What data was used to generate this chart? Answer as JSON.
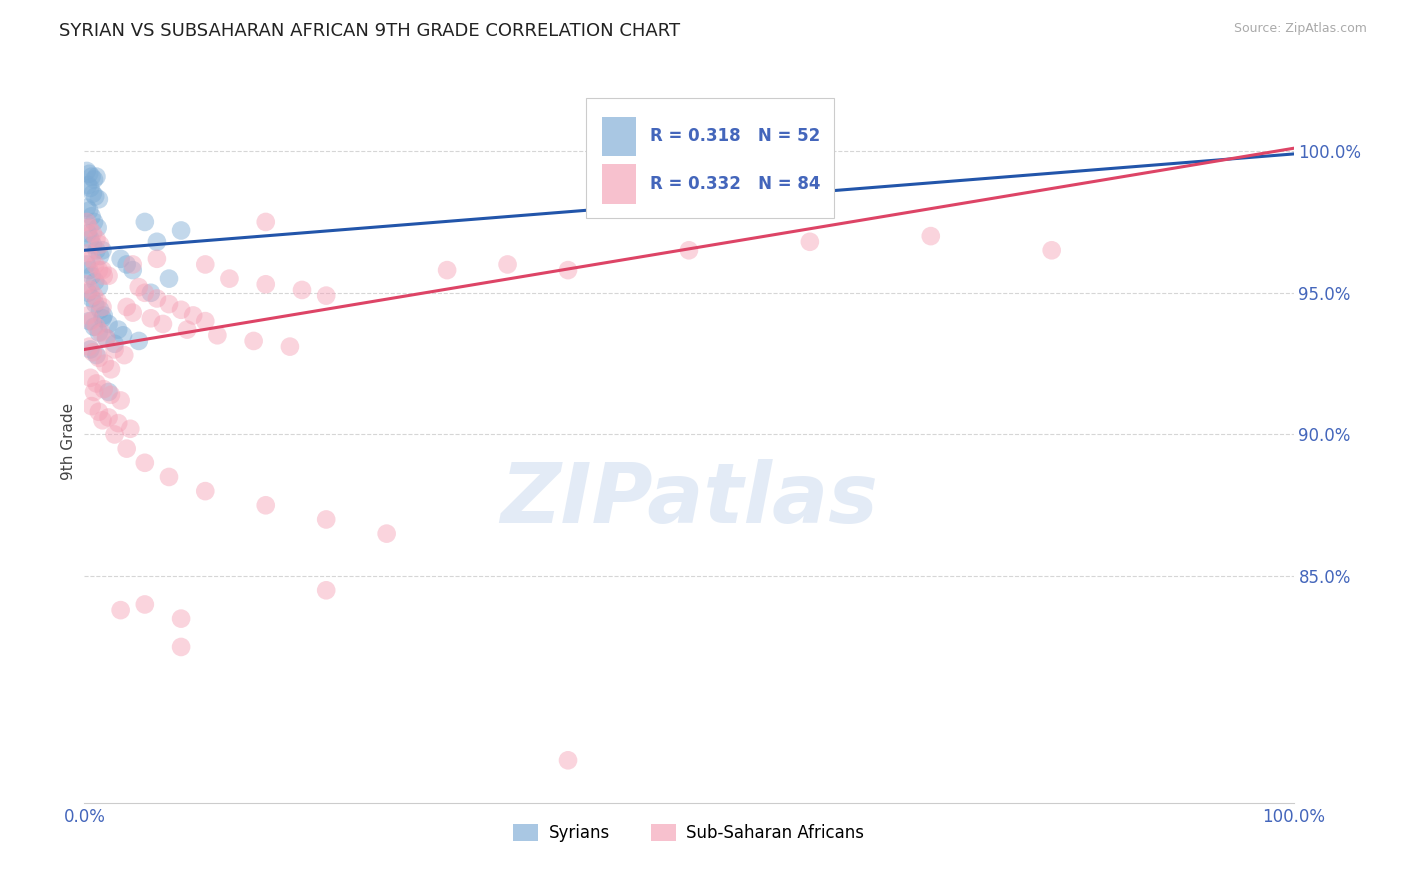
{
  "title": "SYRIAN VS SUBSAHARAN AFRICAN 9TH GRADE CORRELATION CHART",
  "source": "Source: ZipAtlas.com",
  "ylabel": "9th Grade",
  "yticks": [
    100.0,
    95.0,
    90.0,
    85.0
  ],
  "ytick_labels": [
    "100.0%",
    "95.0%",
    "90.0%",
    "85.0%"
  ],
  "xtick_vals": [
    0.0,
    100.0
  ],
  "xtick_labels": [
    "0.0%",
    "100.0%"
  ],
  "xlim": [
    0.0,
    100.0
  ],
  "ylim": [
    77.0,
    102.5
  ],
  "legend_bottom": [
    "Syrians",
    "Sub-Saharan Africans"
  ],
  "R_syrian": 0.318,
  "N_syrian": 52,
  "R_subsaharan": 0.332,
  "N_subsaharan": 84,
  "syrian_color": "#7BAAD4",
  "subsaharan_color": "#F4A0B5",
  "syrian_line_color": "#2255AA",
  "subsaharan_line_color": "#DD4466",
  "background_color": "#FFFFFF",
  "grid_color": "#CCCCCC",
  "title_color": "#222222",
  "source_color": "#AAAAAA",
  "axis_tick_color": "#4466BB",
  "ylabel_color": "#444444",
  "syrian_line_start_y": 96.5,
  "syrian_line_end_y": 99.9,
  "subsaharan_line_start_y": 93.0,
  "subsaharan_line_end_y": 100.1,
  "syrian_points": [
    [
      0.2,
      99.3
    ],
    [
      0.4,
      99.2
    ],
    [
      0.6,
      99.1
    ],
    [
      0.8,
      99.0
    ],
    [
      1.0,
      99.1
    ],
    [
      0.3,
      98.8
    ],
    [
      0.5,
      98.7
    ],
    [
      0.7,
      98.5
    ],
    [
      0.9,
      98.4
    ],
    [
      1.2,
      98.3
    ],
    [
      0.2,
      98.0
    ],
    [
      0.4,
      97.9
    ],
    [
      0.6,
      97.7
    ],
    [
      0.8,
      97.5
    ],
    [
      1.1,
      97.3
    ],
    [
      0.3,
      97.1
    ],
    [
      0.5,
      96.9
    ],
    [
      0.7,
      96.7
    ],
    [
      1.0,
      96.5
    ],
    [
      1.3,
      96.3
    ],
    [
      0.2,
      96.0
    ],
    [
      0.4,
      95.8
    ],
    [
      0.6,
      95.6
    ],
    [
      0.9,
      95.4
    ],
    [
      1.2,
      95.2
    ],
    [
      0.3,
      95.0
    ],
    [
      0.6,
      94.8
    ],
    [
      0.9,
      94.6
    ],
    [
      1.3,
      94.4
    ],
    [
      1.6,
      94.2
    ],
    [
      0.4,
      94.0
    ],
    [
      0.8,
      93.8
    ],
    [
      1.2,
      93.6
    ],
    [
      1.8,
      93.4
    ],
    [
      2.5,
      93.2
    ],
    [
      3.0,
      96.2
    ],
    [
      3.5,
      96.0
    ],
    [
      4.0,
      95.8
    ],
    [
      5.0,
      97.5
    ],
    [
      6.0,
      96.8
    ],
    [
      7.0,
      95.5
    ],
    [
      1.5,
      94.1
    ],
    [
      2.0,
      93.9
    ],
    [
      2.8,
      93.7
    ],
    [
      3.2,
      93.5
    ],
    [
      4.5,
      93.3
    ],
    [
      0.5,
      93.0
    ],
    [
      1.0,
      92.8
    ],
    [
      2.0,
      91.5
    ],
    [
      1.5,
      96.5
    ],
    [
      5.5,
      95.0
    ],
    [
      8.0,
      97.2
    ]
  ],
  "subsaharan_points": [
    [
      0.2,
      97.5
    ],
    [
      0.4,
      97.3
    ],
    [
      0.7,
      97.1
    ],
    [
      1.0,
      96.9
    ],
    [
      1.3,
      96.7
    ],
    [
      0.3,
      96.4
    ],
    [
      0.6,
      96.2
    ],
    [
      0.9,
      96.0
    ],
    [
      1.2,
      95.8
    ],
    [
      1.6,
      95.6
    ],
    [
      0.2,
      95.3
    ],
    [
      0.5,
      95.1
    ],
    [
      0.8,
      94.9
    ],
    [
      1.1,
      94.7
    ],
    [
      1.5,
      94.5
    ],
    [
      0.3,
      94.2
    ],
    [
      0.6,
      94.0
    ],
    [
      1.0,
      93.8
    ],
    [
      1.4,
      93.6
    ],
    [
      1.8,
      93.4
    ],
    [
      0.4,
      93.1
    ],
    [
      0.7,
      92.9
    ],
    [
      1.2,
      92.7
    ],
    [
      1.7,
      92.5
    ],
    [
      2.2,
      92.3
    ],
    [
      0.5,
      92.0
    ],
    [
      1.0,
      91.8
    ],
    [
      1.6,
      91.6
    ],
    [
      2.2,
      91.4
    ],
    [
      3.0,
      91.2
    ],
    [
      0.6,
      91.0
    ],
    [
      1.2,
      90.8
    ],
    [
      2.0,
      90.6
    ],
    [
      2.8,
      90.4
    ],
    [
      3.8,
      90.2
    ],
    [
      4.5,
      95.2
    ],
    [
      5.0,
      95.0
    ],
    [
      6.0,
      94.8
    ],
    [
      7.0,
      94.6
    ],
    [
      8.0,
      94.4
    ],
    [
      9.0,
      94.2
    ],
    [
      10.0,
      94.0
    ],
    [
      12.0,
      95.5
    ],
    [
      15.0,
      95.3
    ],
    [
      18.0,
      95.1
    ],
    [
      20.0,
      94.9
    ],
    [
      30.0,
      95.8
    ],
    [
      35.0,
      96.0
    ],
    [
      40.0,
      95.8
    ],
    [
      50.0,
      96.5
    ],
    [
      60.0,
      96.8
    ],
    [
      70.0,
      97.0
    ],
    [
      80.0,
      96.5
    ],
    [
      3.5,
      94.5
    ],
    [
      4.0,
      94.3
    ],
    [
      5.5,
      94.1
    ],
    [
      6.5,
      93.9
    ],
    [
      8.5,
      93.7
    ],
    [
      11.0,
      93.5
    ],
    [
      14.0,
      93.3
    ],
    [
      17.0,
      93.1
    ],
    [
      2.5,
      93.0
    ],
    [
      3.3,
      92.8
    ],
    [
      1.5,
      95.8
    ],
    [
      2.0,
      95.6
    ],
    [
      4.0,
      96.0
    ],
    [
      6.0,
      96.2
    ],
    [
      10.0,
      96.0
    ],
    [
      15.0,
      97.5
    ],
    [
      0.8,
      91.5
    ],
    [
      1.5,
      90.5
    ],
    [
      2.5,
      90.0
    ],
    [
      3.5,
      89.5
    ],
    [
      5.0,
      89.0
    ],
    [
      7.0,
      88.5
    ],
    [
      10.0,
      88.0
    ],
    [
      15.0,
      87.5
    ],
    [
      20.0,
      87.0
    ],
    [
      25.0,
      86.5
    ],
    [
      5.0,
      84.0
    ],
    [
      8.0,
      83.5
    ],
    [
      3.0,
      83.8
    ],
    [
      8.0,
      82.5
    ],
    [
      20.0,
      84.5
    ],
    [
      40.0,
      78.5
    ]
  ]
}
